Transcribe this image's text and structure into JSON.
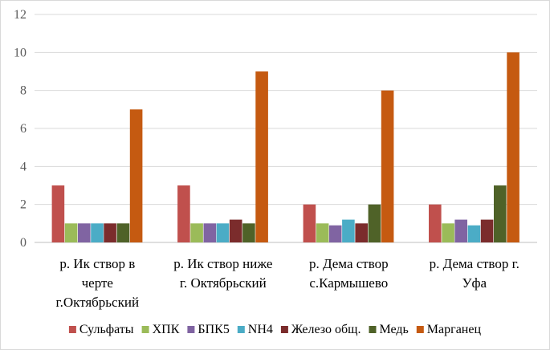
{
  "chart_data": {
    "type": "bar",
    "categories": [
      [
        "р. Ик створ в",
        "черте",
        "г.Октябрьский"
      ],
      [
        "р. Ик створ ниже",
        "г. Октябрьский"
      ],
      [
        "р. Дема створ",
        "с.Кармышево"
      ],
      [
        "р. Дема створ г.",
        "Уфа"
      ]
    ],
    "series": [
      {
        "name": "Сульфаты",
        "color": "#c0504d",
        "values": [
          3,
          3,
          2,
          2
        ]
      },
      {
        "name": "ХПК",
        "color": "#9bbb59",
        "values": [
          1,
          1,
          1,
          1
        ]
      },
      {
        "name": "БПК5",
        "color": "#8064a2",
        "values": [
          1,
          1,
          0.9,
          1.2
        ]
      },
      {
        "name": "NH4",
        "color": "#4bacc6",
        "values": [
          1,
          1,
          1.2,
          0.9
        ]
      },
      {
        "name": "Железо общ.",
        "color": "#7b2c2c",
        "values": [
          1,
          1.2,
          1,
          1.2
        ]
      },
      {
        "name": "Медь",
        "color": "#4f6228",
        "values": [
          1,
          1,
          2,
          3
        ]
      },
      {
        "name": "Марганец",
        "color": "#c55a11",
        "values": [
          7,
          9,
          8,
          10
        ]
      }
    ],
    "yticks": [
      "0",
      "2",
      "4",
      "6",
      "8",
      "10",
      "12"
    ],
    "ylim": [
      0,
      12
    ],
    "grid": true,
    "legend_position": "bottom"
  }
}
